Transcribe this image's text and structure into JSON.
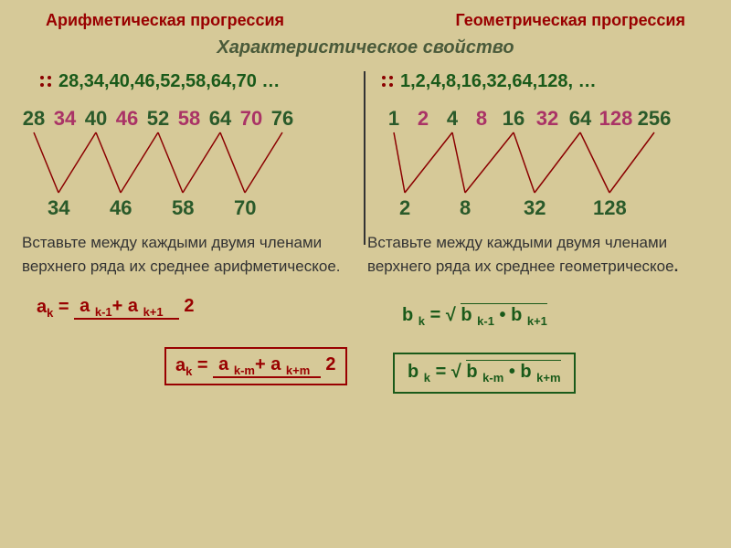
{
  "header": {
    "left": "Арифметическая прогрессия",
    "right": "Геометрическая прогрессия",
    "subtitle": "Характеристическое свойство"
  },
  "sequences": {
    "arith_text": "28,34,40,46,52,58,64,70  …",
    "geom_text": "1,2,4,8,16,32,64,128, …"
  },
  "arith_top": [
    "28",
    "34",
    "40",
    "46",
    "52",
    "58",
    "64",
    "70",
    "76"
  ],
  "arith_top_widths": [
    34,
    34,
    34,
    34,
    34,
    34,
    34,
    34,
    34
  ],
  "geom_top": [
    "1",
    "2",
    "4",
    "8",
    "16",
    "32",
    "64",
    "128",
    "256"
  ],
  "geom_top_widths": [
    32,
    32,
    32,
    32,
    38,
    36,
    36,
    42,
    42
  ],
  "arith_bottom": [
    "34",
    "46",
    "58",
    "70"
  ],
  "arith_bottom_pos": [
    32,
    100,
    168,
    236
  ],
  "geom_bottom": [
    "2",
    "8",
    "32",
    "128"
  ],
  "geom_bottom_pos": [
    22,
    88,
    158,
    234
  ],
  "instructions": {
    "left": "Вставьте между каждыми двумя членами верхнего ряда их среднее арифметическое.",
    "right": "Вставьте между каждыми двумя членами верхнего ряда их среднее геометрическое"
  },
  "formula_labels": {
    "ak": "a",
    "ak_sub": "k",
    "ak1_top": "a ",
    "ak1_sub1": "k-1",
    "plus": "+ a ",
    "ak1_sub2": "k+1",
    "two": "2",
    "akm_sub1": "k-m",
    "akm_sub2": "k+m",
    "bk": "b ",
    "bk_sub": "k",
    "sqrt": "√ ",
    "bk1_sub1": "k-1",
    "dot": " • ",
    "bk1_sub2": "k+1",
    "bkm_sub1": "k-m",
    "bkm_sub2": "k+m",
    "eq": " = "
  },
  "colors": {
    "bg": "#d6c998",
    "heading": "#990000",
    "subtitle": "#4a5a3a",
    "dark_green": "#2a5a2a",
    "pink": "#aa3366",
    "formula_red": "#990000",
    "formula_green": "#1a5a1a",
    "line": "#8b0000"
  },
  "vline_stroke": "#8b0000",
  "vline_width": 1.5
}
